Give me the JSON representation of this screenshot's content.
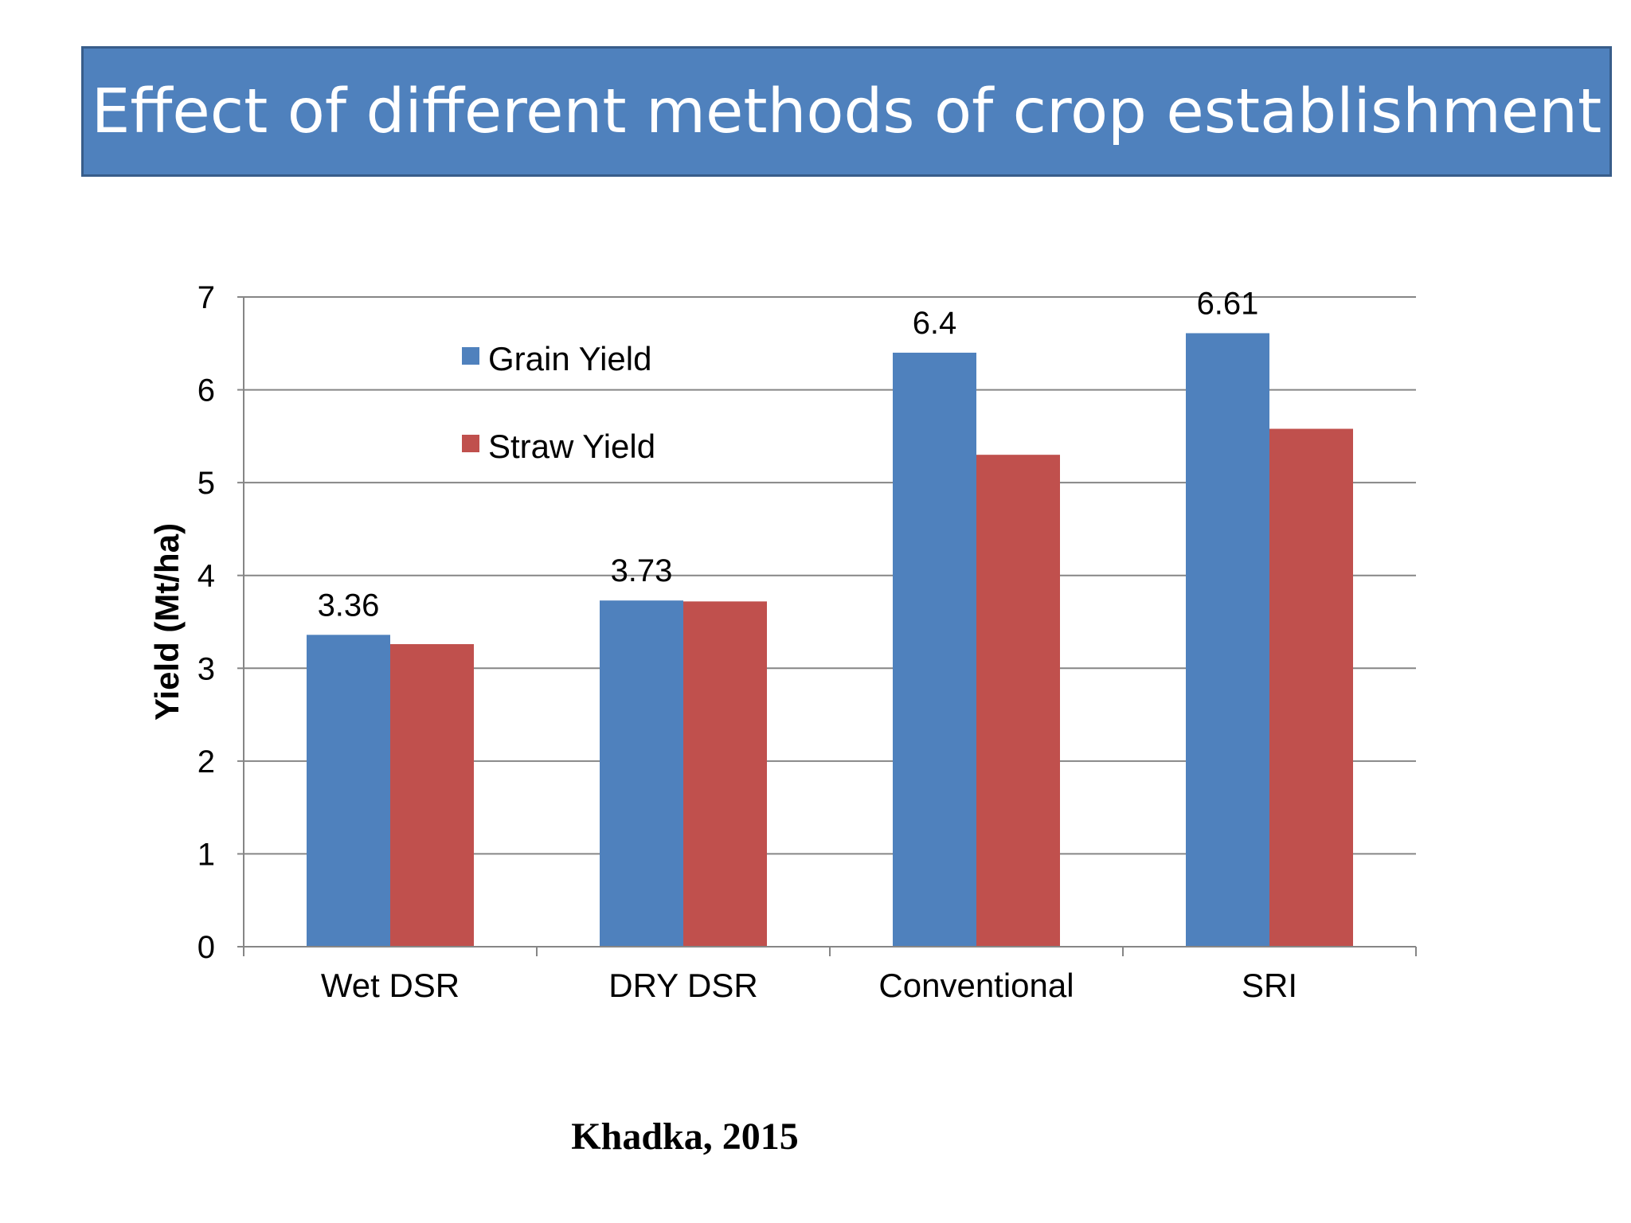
{
  "slide": {
    "title": "Effect of different methods of crop establishment",
    "source": "Khadka, 2015"
  },
  "colors": {
    "banner": "#4f81bd",
    "grain": "#4f81bd",
    "straw": "#c0504d"
  },
  "chart_data": {
    "type": "bar",
    "title": "",
    "xlabel": "",
    "ylabel": "Yield (Mt/ha)",
    "categories": [
      "Wet DSR",
      "DRY DSR",
      "Conventional",
      "SRI"
    ],
    "ylim": [
      0,
      7
    ],
    "yticks": [
      0,
      1,
      2,
      3,
      4,
      5,
      6,
      7
    ],
    "grid": true,
    "legend_position": "top-left",
    "series": [
      {
        "name": "Grain Yield",
        "color": "#4f81bd",
        "values": [
          3.36,
          3.73,
          6.4,
          6.61
        ],
        "labels": [
          "3.36",
          "3.73",
          "6.4",
          "6.61"
        ]
      },
      {
        "name": "Straw Yield",
        "color": "#c0504d",
        "values": [
          3.26,
          3.72,
          5.3,
          5.58
        ],
        "labels": [
          "",
          "",
          "",
          ""
        ]
      }
    ]
  }
}
